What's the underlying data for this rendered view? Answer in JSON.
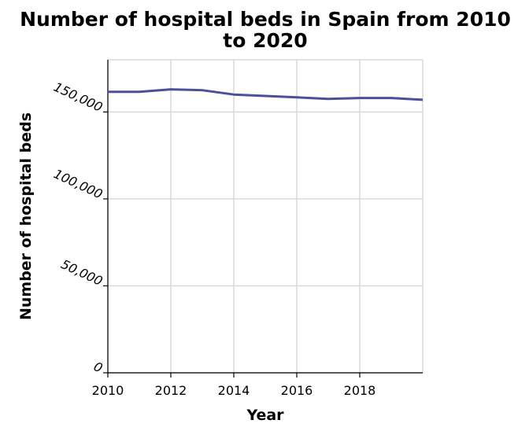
{
  "chart_data": {
    "type": "line",
    "title_lines": [
      "Number of hospital beds in Spain from 2010",
      "to 2020"
    ],
    "xlabel": "Year",
    "ylabel": "Number of hospital beds",
    "xlim": [
      2010,
      2020
    ],
    "ylim": [
      0,
      180000
    ],
    "x_ticks": [
      2010,
      2012,
      2014,
      2016,
      2018
    ],
    "x_tick_labels": [
      "2010",
      "2012",
      "2014",
      "2016",
      "2018"
    ],
    "y_ticks": [
      0,
      50000,
      100000,
      150000
    ],
    "y_tick_labels": [
      "0",
      "50,000",
      "100,000",
      "150,000"
    ],
    "grid": true,
    "line_color": "#4c4f9a",
    "series": [
      {
        "x": [
          2010,
          2011,
          2012,
          2013,
          2014,
          2015,
          2016,
          2017,
          2018,
          2019,
          2020
        ],
        "values": [
          161600,
          161600,
          163000,
          162500,
          160000,
          159200,
          158400,
          157500,
          158000,
          158000,
          157000
        ]
      }
    ]
  }
}
